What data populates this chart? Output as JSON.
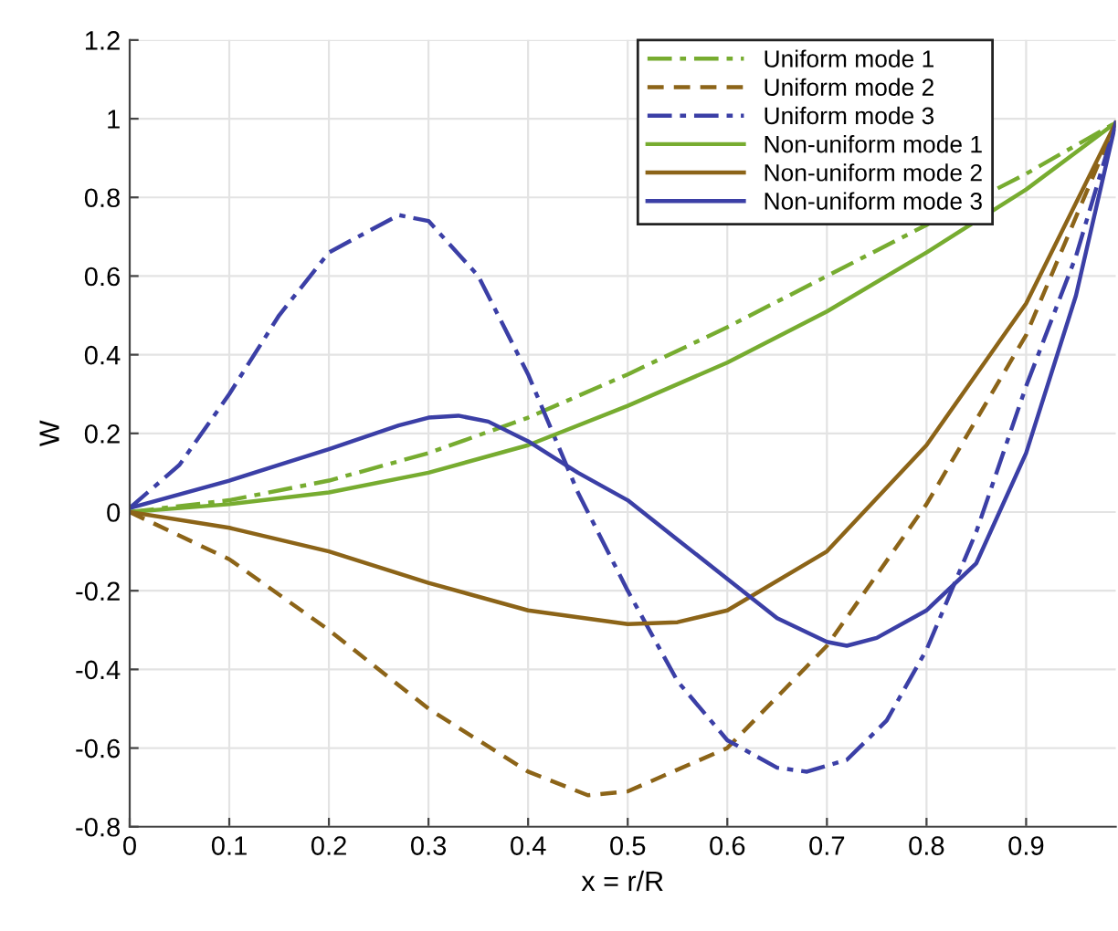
{
  "chart_data": {
    "type": "line",
    "xlabel": "x = r/R",
    "ylabel": "W",
    "xlim": [
      0,
      0.99
    ],
    "ylim": [
      -0.8,
      1.2
    ],
    "xticks": [
      0,
      0.1,
      0.2,
      0.3,
      0.4,
      0.5,
      0.6,
      0.7,
      0.8,
      0.9
    ],
    "yticks": [
      -0.8,
      -0.6,
      -0.4,
      -0.2,
      0,
      0.2,
      0.4,
      0.6,
      0.8,
      1,
      1.2
    ],
    "grid": true,
    "legend": "top right",
    "marker": "none",
    "series": [
      {
        "name": "Uniform mode 1",
        "color": "#77ac30",
        "line_style": "dashdot",
        "x": [
          0,
          0.1,
          0.2,
          0.3,
          0.4,
          0.5,
          0.6,
          0.7,
          0.8,
          0.9,
          0.99
        ],
        "values": [
          0,
          0.03,
          0.08,
          0.15,
          0.24,
          0.35,
          0.47,
          0.6,
          0.73,
          0.86,
          0.99
        ]
      },
      {
        "name": "Uniform mode 2",
        "color": "#8c6418",
        "line_style": "dashed",
        "x": [
          0,
          0.1,
          0.2,
          0.3,
          0.4,
          0.46,
          0.5,
          0.6,
          0.7,
          0.8,
          0.9,
          0.99
        ],
        "values": [
          0,
          -0.12,
          -0.3,
          -0.5,
          -0.66,
          -0.72,
          -0.71,
          -0.6,
          -0.34,
          0.02,
          0.45,
          0.99
        ]
      },
      {
        "name": "Uniform mode 3",
        "color": "#3b3fa6",
        "line_style": "dashdot",
        "x": [
          0,
          0.05,
          0.1,
          0.15,
          0.2,
          0.27,
          0.3,
          0.35,
          0.4,
          0.45,
          0.5,
          0.55,
          0.6,
          0.65,
          0.68,
          0.72,
          0.76,
          0.8,
          0.85,
          0.9,
          0.95,
          0.99
        ],
        "values": [
          0.01,
          0.12,
          0.3,
          0.5,
          0.66,
          0.755,
          0.74,
          0.6,
          0.35,
          0.05,
          -0.2,
          -0.43,
          -0.58,
          -0.65,
          -0.66,
          -0.63,
          -0.53,
          -0.35,
          -0.05,
          0.32,
          0.65,
          0.99
        ]
      },
      {
        "name": "Non-uniform mode 1",
        "color": "#77ac30",
        "line_style": "solid",
        "x": [
          0,
          0.1,
          0.2,
          0.3,
          0.4,
          0.5,
          0.6,
          0.7,
          0.8,
          0.9,
          0.99
        ],
        "values": [
          0,
          0.02,
          0.05,
          0.1,
          0.17,
          0.27,
          0.38,
          0.51,
          0.66,
          0.82,
          0.99
        ]
      },
      {
        "name": "Non-uniform mode 2",
        "color": "#8c6418",
        "line_style": "solid",
        "x": [
          0,
          0.1,
          0.2,
          0.3,
          0.4,
          0.5,
          0.55,
          0.6,
          0.7,
          0.8,
          0.9,
          0.99
        ],
        "values": [
          0,
          -0.04,
          -0.1,
          -0.18,
          -0.25,
          -0.285,
          -0.28,
          -0.25,
          -0.1,
          0.17,
          0.53,
          0.99
        ]
      },
      {
        "name": "Non-uniform mode 3",
        "color": "#3b3fa6",
        "line_style": "solid",
        "x": [
          0,
          0.1,
          0.2,
          0.27,
          0.3,
          0.33,
          0.36,
          0.4,
          0.45,
          0.5,
          0.55,
          0.6,
          0.65,
          0.7,
          0.72,
          0.75,
          0.8,
          0.85,
          0.9,
          0.95,
          0.99
        ],
        "values": [
          0.01,
          0.08,
          0.16,
          0.22,
          0.24,
          0.245,
          0.23,
          0.18,
          0.1,
          0.03,
          -0.07,
          -0.17,
          -0.27,
          -0.33,
          -0.34,
          -0.32,
          -0.25,
          -0.13,
          0.15,
          0.55,
          0.99
        ]
      }
    ]
  }
}
